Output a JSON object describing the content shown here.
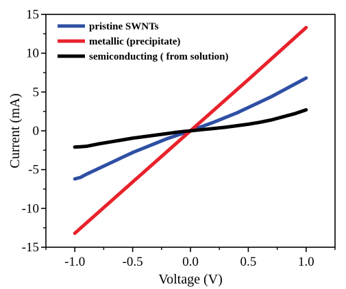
{
  "chart_data": {
    "type": "line",
    "title": "",
    "xlabel": "Voltage (V)",
    "ylabel": "Current (mA)",
    "xlim": [
      -1.25,
      1.25
    ],
    "ylim": [
      -15,
      15
    ],
    "x_ticks": [
      -1.0,
      -0.5,
      0.0,
      0.5,
      1.0
    ],
    "x_tick_labels": [
      "-1.0",
      "-0.5",
      "0.0",
      "0.5",
      "1.0"
    ],
    "y_ticks": [
      -15,
      -10,
      -5,
      0,
      5,
      10,
      15
    ],
    "y_tick_labels": [
      "-15",
      "-10",
      "-5",
      "0",
      "5",
      "10",
      "15"
    ],
    "grid": false,
    "legend_position": "top-left",
    "series": [
      {
        "name": "pristine SWNTs",
        "color": "#2e4fa3",
        "x": [
          -1.0,
          -0.95,
          -0.9,
          -0.8,
          -0.7,
          -0.6,
          -0.5,
          -0.4,
          -0.3,
          -0.2,
          -0.1,
          0.0,
          0.1,
          0.2,
          0.3,
          0.4,
          0.5,
          0.6,
          0.7,
          0.8,
          0.9,
          1.0
        ],
        "y": [
          -6.2,
          -6.0,
          -5.6,
          -4.9,
          -4.2,
          -3.5,
          -2.8,
          -2.2,
          -1.6,
          -1.0,
          -0.5,
          0.0,
          0.55,
          1.1,
          1.7,
          2.3,
          3.0,
          3.7,
          4.4,
          5.2,
          6.0,
          6.8
        ]
      },
      {
        "name": "metallic (precipitate)",
        "color": "#e8222b",
        "x": [
          -1.0,
          -0.5,
          0.0,
          0.5,
          1.0
        ],
        "y": [
          -13.2,
          -6.6,
          0.0,
          6.6,
          13.3
        ]
      },
      {
        "name": "semiconducting ( from solution)",
        "color": "#000000",
        "x": [
          -1.0,
          -0.95,
          -0.9,
          -0.8,
          -0.7,
          -0.6,
          -0.5,
          -0.4,
          -0.3,
          -0.2,
          -0.1,
          0.0,
          0.1,
          0.2,
          0.3,
          0.4,
          0.5,
          0.6,
          0.7,
          0.8,
          0.9,
          1.0
        ],
        "y": [
          -2.1,
          -2.05,
          -2.0,
          -1.7,
          -1.45,
          -1.2,
          -0.95,
          -0.75,
          -0.55,
          -0.35,
          -0.15,
          0.0,
          0.15,
          0.3,
          0.45,
          0.65,
          0.85,
          1.1,
          1.4,
          1.8,
          2.2,
          2.7
        ]
      }
    ]
  }
}
